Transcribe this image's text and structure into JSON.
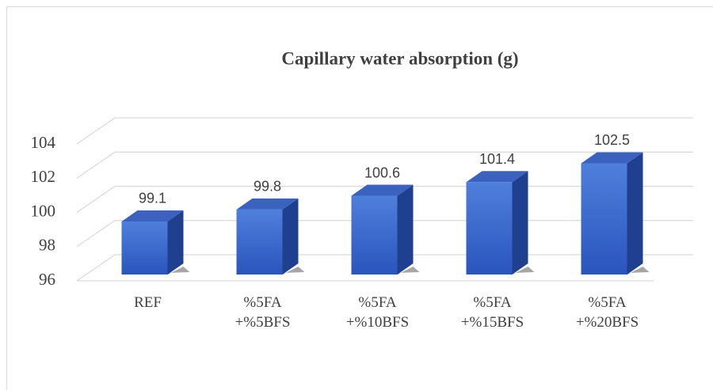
{
  "chart_data": {
    "type": "bar3d",
    "title": "Capillary water absorption (g)",
    "categories": [
      "REF",
      "%5FA\n+%5BFS",
      "%5FA\n+%10BFS",
      "%5FA\n+%15BFS",
      "%5FA\n+%20BFS"
    ],
    "values": [
      99.1,
      99.8,
      100.6,
      101.4,
      102.5
    ],
    "color": "#3a66cc",
    "ylim": [
      96,
      104
    ],
    "yticks": [
      96,
      98,
      100,
      102,
      104
    ],
    "grid": true
  }
}
